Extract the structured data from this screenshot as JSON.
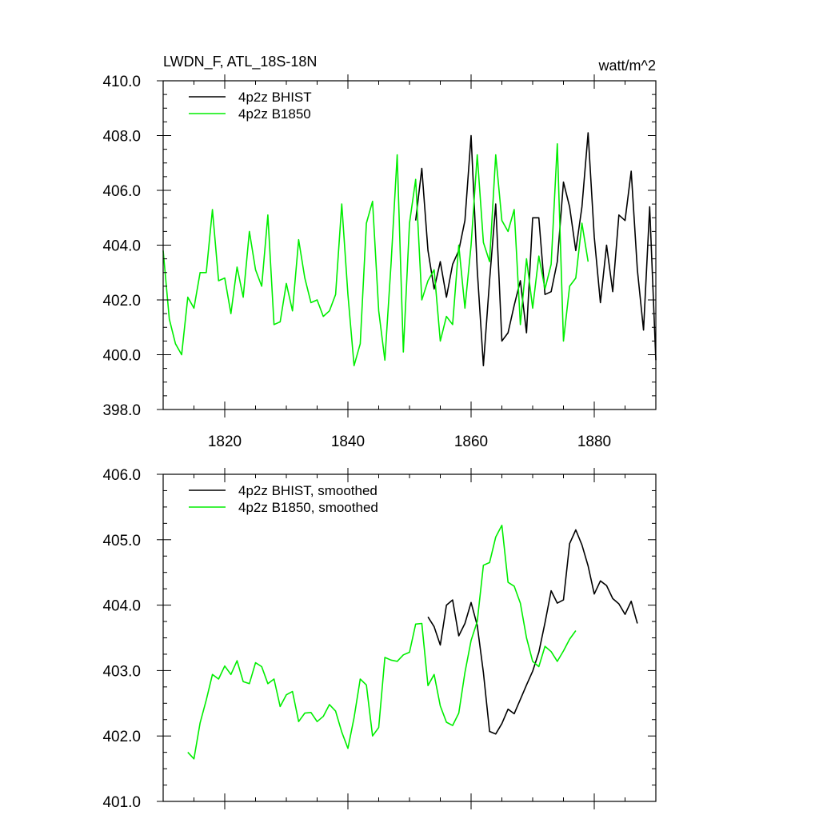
{
  "colors": {
    "bhist": "#000000",
    "b1850": "#00ee00"
  },
  "chart_data": [
    {
      "type": "line",
      "title": "LWDN_F, ATL_18S-18N",
      "units": "watt/m^2",
      "xlabel": "",
      "ylabel": "",
      "xlim": [
        1810,
        1890
      ],
      "ylim": [
        398,
        410
      ],
      "xticks": [
        1820,
        1840,
        1860,
        1880
      ],
      "xtick_labels": [
        "1820",
        "1840",
        "1860",
        "1880"
      ],
      "yticks": [
        398,
        400,
        402,
        404,
        406,
        408,
        410
      ],
      "ytick_labels": [
        "398.0",
        "400.0",
        "402.0",
        "404.0",
        "406.0",
        "408.0",
        "410.0"
      ],
      "show_xtick_labels": true,
      "legend": "top-left",
      "series": [
        {
          "name": "4p2z BHIST",
          "color": "#000000",
          "x0": 1851,
          "values": [
            404.9,
            406.8,
            403.8,
            402.4,
            403.4,
            402.1,
            403.3,
            403.8,
            404.9,
            408.0,
            403.1,
            399.6,
            402.7,
            405.5,
            400.5,
            400.8,
            401.8,
            402.7,
            400.8,
            405.0,
            405.0,
            402.2,
            402.3,
            403.4,
            406.3,
            405.4,
            403.8,
            405.4,
            408.1,
            404.3,
            401.9,
            404.0,
            402.3,
            405.1,
            404.9,
            406.7,
            403.1,
            400.9,
            405.4,
            399.8
          ]
        },
        {
          "name": "4p2z B1850",
          "color": "#00ee00",
          "x0": 1810,
          "values": [
            403.8,
            401.3,
            400.4,
            400.0,
            402.1,
            401.7,
            403.0,
            403.0,
            405.3,
            402.7,
            402.8,
            401.5,
            403.2,
            402.1,
            404.5,
            403.1,
            402.5,
            405.1,
            401.1,
            401.2,
            402.6,
            401.6,
            404.2,
            402.8,
            401.9,
            402.0,
            401.4,
            401.6,
            402.2,
            405.5,
            402.2,
            399.6,
            400.4,
            404.8,
            405.6,
            401.6,
            399.8,
            403.3,
            407.3,
            400.1,
            404.8,
            406.4,
            402.0,
            402.7,
            403.1,
            400.5,
            401.4,
            401.1,
            404.0,
            401.7,
            404.0,
            407.3,
            404.1,
            403.4,
            407.3,
            404.9,
            404.5,
            405.3,
            401.1,
            403.5,
            401.7,
            403.6,
            402.4,
            403.3,
            407.7,
            400.5,
            402.5,
            402.8,
            404.8,
            403.4
          ]
        }
      ]
    },
    {
      "type": "line",
      "title": "",
      "xlabel": "",
      "ylabel": "",
      "xlim": [
        1810,
        1890
      ],
      "ylim": [
        401,
        406
      ],
      "xticks": [
        1820,
        1840,
        1860,
        1880
      ],
      "xtick_labels": [
        "",
        "",
        "",
        ""
      ],
      "yticks": [
        401,
        402,
        403,
        404,
        405,
        406
      ],
      "ytick_labels": [
        "401.0",
        "402.0",
        "403.0",
        "404.0",
        "405.0",
        "406.0"
      ],
      "show_xtick_labels": false,
      "legend": "top-left",
      "series": [
        {
          "name": "4p2z BHIST, smoothed",
          "color": "#000000",
          "x0": 1853,
          "values": [
            403.82,
            403.67,
            403.39,
            404.0,
            404.08,
            403.53,
            403.72,
            404.04,
            403.69,
            402.97,
            402.07,
            402.03,
            402.19,
            402.41,
            402.34,
            402.56,
            402.78,
            402.99,
            403.28,
            403.73,
            404.22,
            404.03,
            404.08,
            404.94,
            405.15,
            404.92,
            404.6,
            404.17,
            404.37,
            404.3,
            404.1,
            404.02,
            403.86,
            404.06,
            403.72
          ]
        },
        {
          "name": "4p2z B1850, smoothed",
          "color": "#00ee00",
          "x0": 1814,
          "values": [
            401.75,
            401.65,
            402.2,
            402.55,
            402.94,
            402.87,
            403.07,
            402.94,
            403.15,
            402.83,
            402.8,
            403.12,
            403.06,
            402.8,
            402.87,
            402.45,
            402.63,
            402.68,
            402.22,
            402.35,
            402.36,
            402.22,
            402.3,
            402.48,
            402.38,
            402.06,
            401.81,
            402.28,
            402.87,
            402.78,
            402.0,
            402.13,
            403.2,
            403.16,
            403.14,
            403.24,
            403.28,
            403.71,
            403.72,
            402.77,
            402.94,
            402.46,
            402.21,
            402.16,
            402.35,
            402.97,
            403.46,
            403.75,
            404.61,
            404.65,
            405.04,
            405.22,
            404.35,
            404.29,
            404.03,
            403.5,
            403.14,
            403.06,
            403.37,
            403.29,
            403.14,
            403.3,
            403.48,
            403.61
          ]
        }
      ]
    }
  ]
}
